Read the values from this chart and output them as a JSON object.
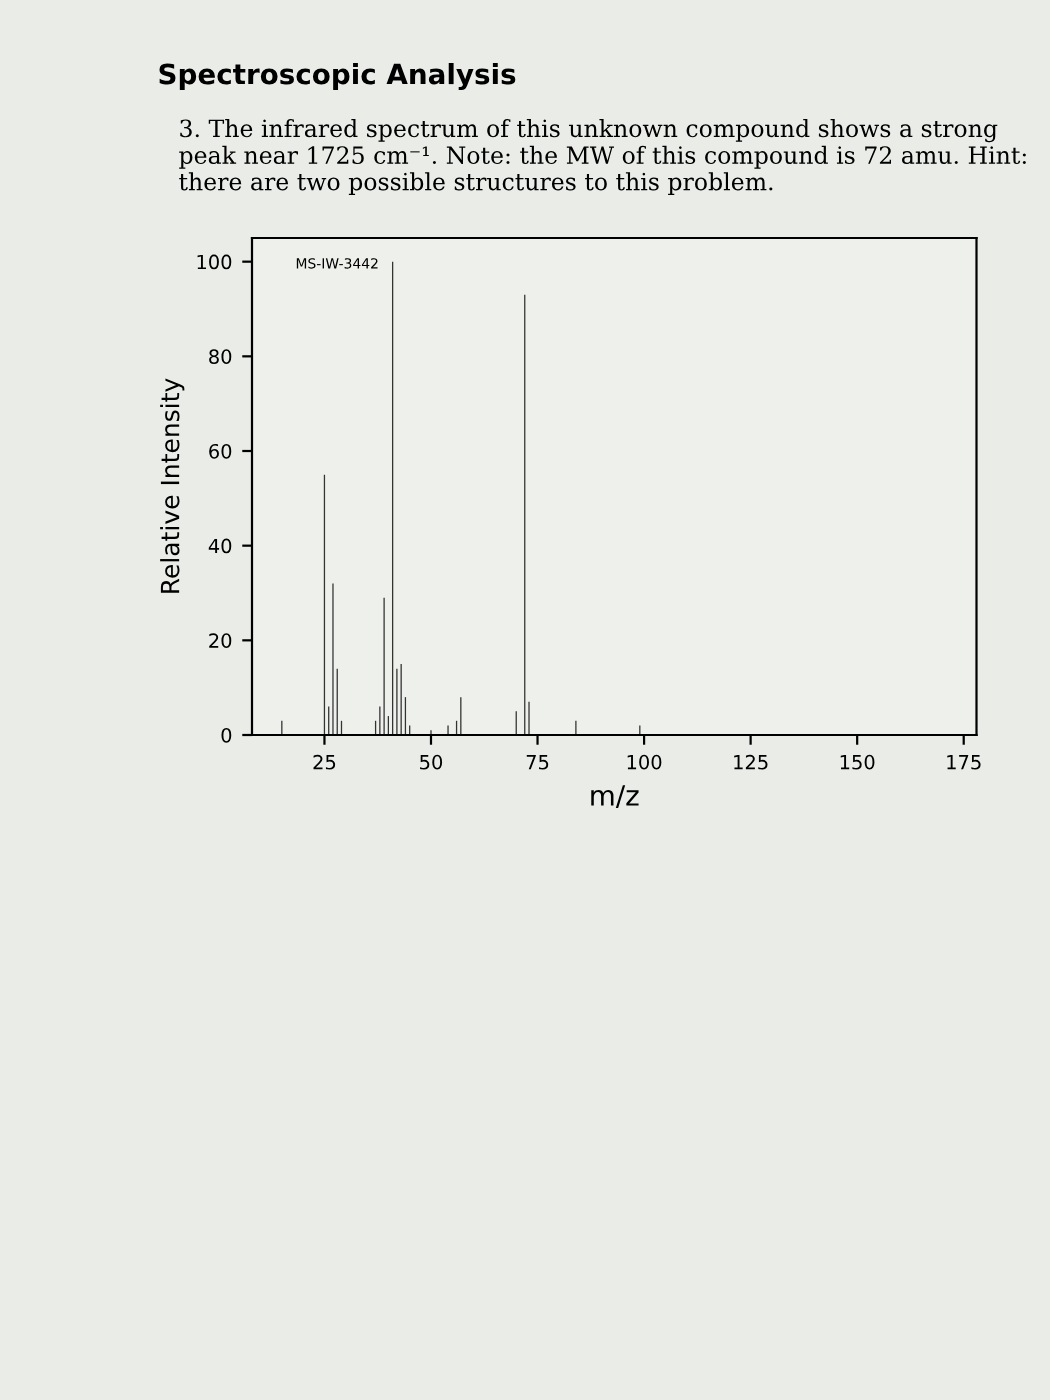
{
  "chart_data": {
    "type": "bar",
    "title": "Spectroscopic Analysis",
    "subtitle": "3. The infrared spectrum of this unknown compound shows a strong peak near 1725 cm⁻¹. Note: the MW of this compound is 72 amu. Hint: there are two possible structures to this problem.",
    "xlabel": "m/z",
    "ylabel": "Relative Intensity",
    "annotations": [
      "MS-IW-3442"
    ],
    "x": [
      15,
      25,
      26,
      27,
      28,
      29,
      37,
      38,
      39,
      40,
      41,
      42,
      43,
      44,
      45,
      50,
      54,
      56,
      57,
      70,
      72,
      73,
      84,
      99
    ],
    "values": [
      3,
      55,
      6,
      32,
      14,
      3,
      3,
      6,
      29,
      4,
      100,
      14,
      15,
      8,
      2,
      1,
      2,
      3,
      8,
      5,
      93,
      7,
      3,
      2
    ],
    "color": "#333333",
    "xlim": [
      8,
      178
    ],
    "xticks": [
      25,
      50,
      75,
      100,
      125,
      150,
      175
    ],
    "ylim": [
      0,
      105
    ],
    "yticks": [
      0,
      20,
      40,
      60,
      80,
      100
    ],
    "grid": false
  }
}
